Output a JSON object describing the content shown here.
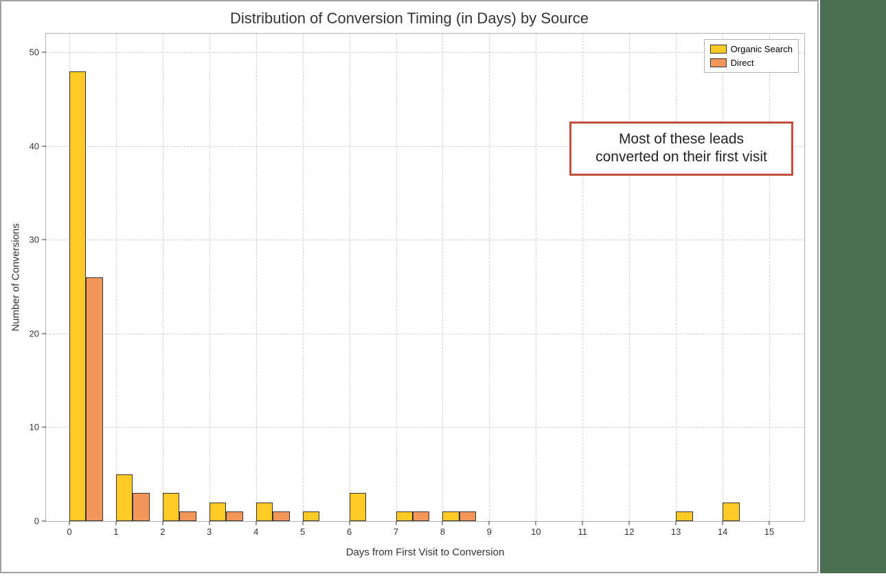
{
  "chart": {
    "type": "grouped-bar-histogram",
    "title": "Distribution of Conversion Timing (in Days) by Source",
    "title_fontsize": 22,
    "xlabel": "Days from First Visit to Conversion",
    "ylabel": "Number of Conversions",
    "label_fontsize": 15,
    "tick_fontsize": 13,
    "background_color": "#ffffff",
    "border_color": "#a0a0a0",
    "axis_color": "#b0b0b0",
    "grid_color": "#cfcfcf",
    "grid_style": "dashed",
    "xlim": [
      -0.5,
      15.75
    ],
    "ylim": [
      0,
      52
    ],
    "xticks": [
      0,
      1,
      2,
      3,
      4,
      5,
      6,
      7,
      8,
      9,
      10,
      11,
      12,
      13,
      14,
      15
    ],
    "yticks": [
      0,
      10,
      20,
      30,
      40,
      50
    ],
    "x_bins": [
      0,
      1,
      2,
      3,
      4,
      5,
      6,
      7,
      8,
      9,
      10,
      11,
      12,
      13,
      14
    ],
    "bar_group_width": 0.72,
    "series": [
      {
        "name": "Organic Search",
        "color": "#ffc926",
        "edge_color": "#333333",
        "values": [
          48,
          5,
          3,
          2,
          2,
          1,
          3,
          1,
          1,
          0,
          0,
          0,
          0,
          1,
          2
        ]
      },
      {
        "name": "Direct",
        "color": "#f2965a",
        "edge_color": "#333333",
        "values": [
          26,
          3,
          1,
          1,
          1,
          0,
          0,
          1,
          1,
          0,
          0,
          0,
          0,
          0,
          0
        ]
      }
    ],
    "legend": {
      "position": "upper-right",
      "border_color": "#b0b0b0",
      "background": "#ffffff"
    },
    "annotation": {
      "text_line1": "Most of these leads",
      "text_line2": "converted on their first visit",
      "border_color": "#c0503a",
      "border_width": 3,
      "background": "#ffffff",
      "fontsize": 21
    },
    "side_strip_color": "#4c6e52"
  }
}
